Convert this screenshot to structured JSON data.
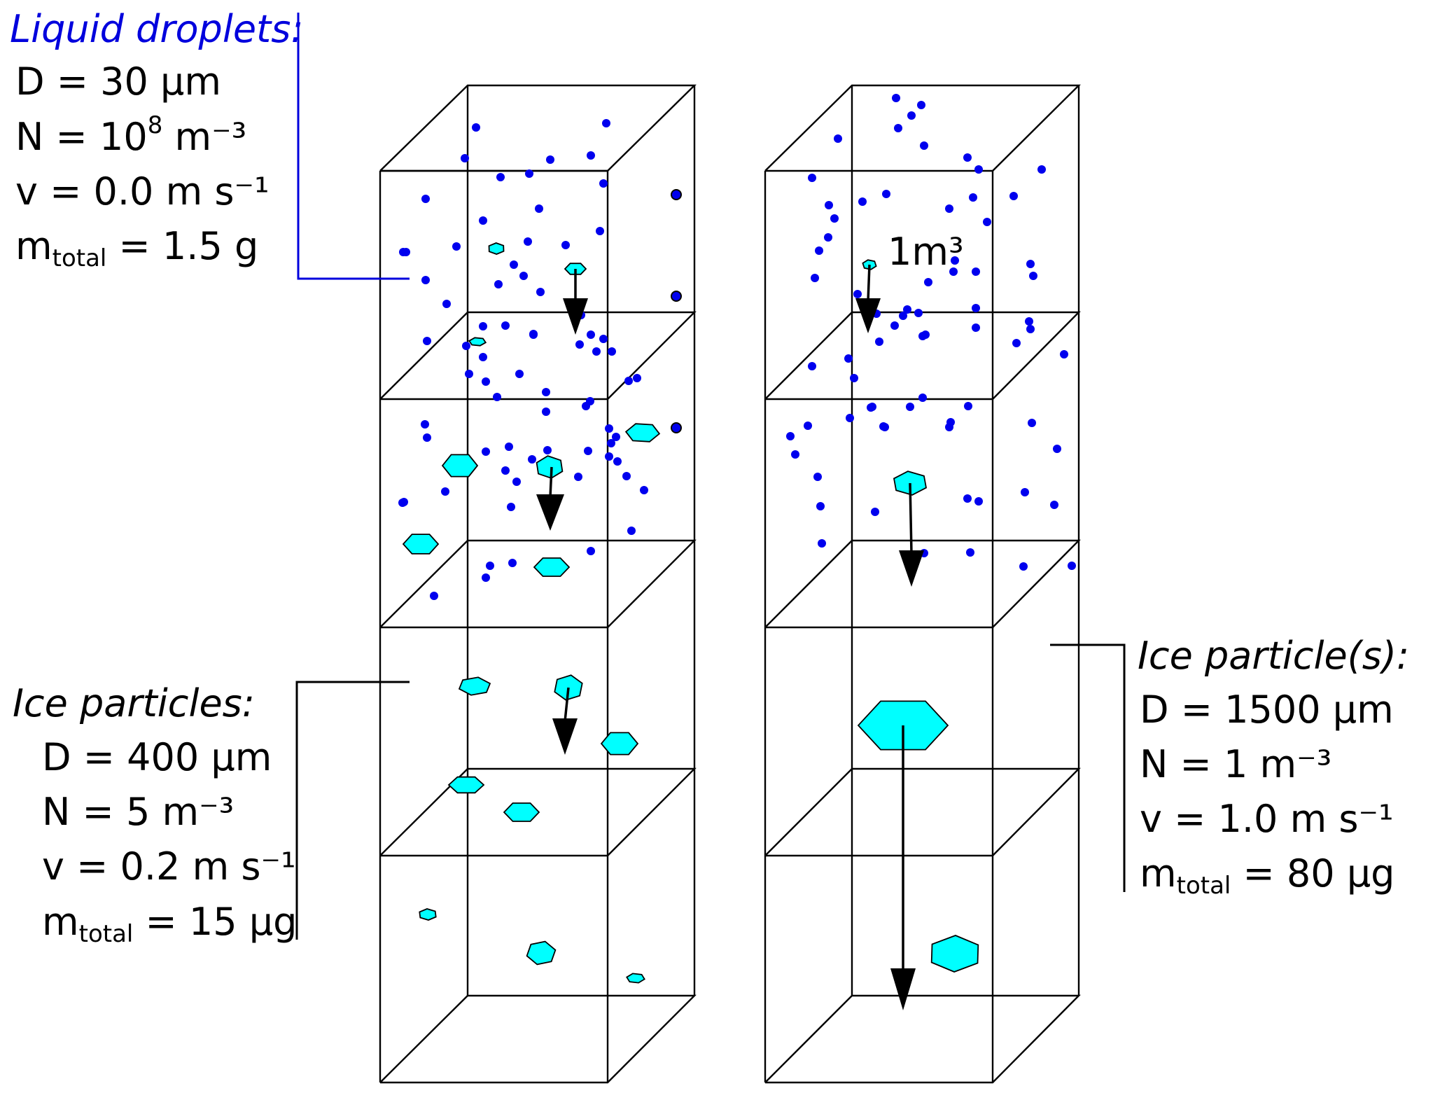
{
  "colors": {
    "droplet": "#0000ee",
    "ice": "#00ffff",
    "outline": "#000000",
    "droplet_text": "#0000dd",
    "ice_text": "#000000"
  },
  "volume_label": "1m³",
  "liquid": {
    "title": "Liquid droplets:",
    "D": "D = 30 µm",
    "N_prefix": "N = 10",
    "N_exp": "8",
    "N_suffix": " m⁻³",
    "v": "v = 0.0 m s⁻¹",
    "m_prefix": "m",
    "m_sub": "total",
    "m_suffix": " = 1.5 g"
  },
  "ice_left": {
    "title": "Ice particles:",
    "D": "D = 400 µm",
    "N": "N = 5 m⁻³",
    "v": "v = 0.2 m s⁻¹",
    "m_prefix": "m",
    "m_sub": "total",
    "m_suffix": " = 15 µg"
  },
  "ice_right": {
    "title": "Ice particle(s):",
    "D": "D = 1500 µm",
    "N": "N = 1 m⁻³",
    "v": "v = 1.0 m s⁻¹",
    "m_prefix": "m",
    "m_sub": "total",
    "m_suffix": " = 80 µg"
  }
}
